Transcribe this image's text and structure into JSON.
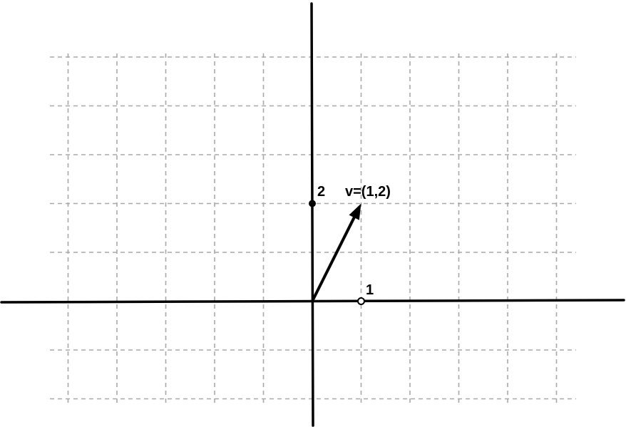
{
  "diagram": {
    "grid": {
      "x_min": -5,
      "x_max": 5,
      "y_min": -2,
      "y_max": 5,
      "dashed": true
    },
    "axes": {
      "origin": [
        0,
        0
      ]
    },
    "tick_points": [
      {
        "id": "x-unit",
        "value": [
          1,
          0
        ],
        "label": "1",
        "marker": "open"
      },
      {
        "id": "y-two",
        "value": [
          0,
          2
        ],
        "label": "2",
        "marker": "filled"
      }
    ],
    "vector": {
      "from": [
        0,
        0
      ],
      "to": [
        1,
        2
      ],
      "label": "v=(1,2)"
    }
  }
}
